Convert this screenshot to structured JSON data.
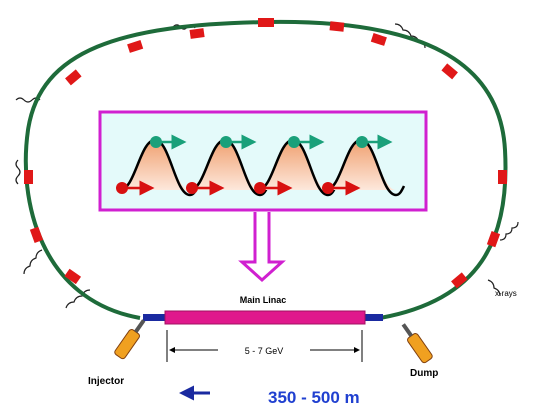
{
  "labels": {
    "main_linac": "Main Linac",
    "energy": "5 - 7 GeV",
    "injector": "Injector",
    "dump": "Dump",
    "xrays": "x-rays",
    "length": "350 - 500 m"
  }
}
